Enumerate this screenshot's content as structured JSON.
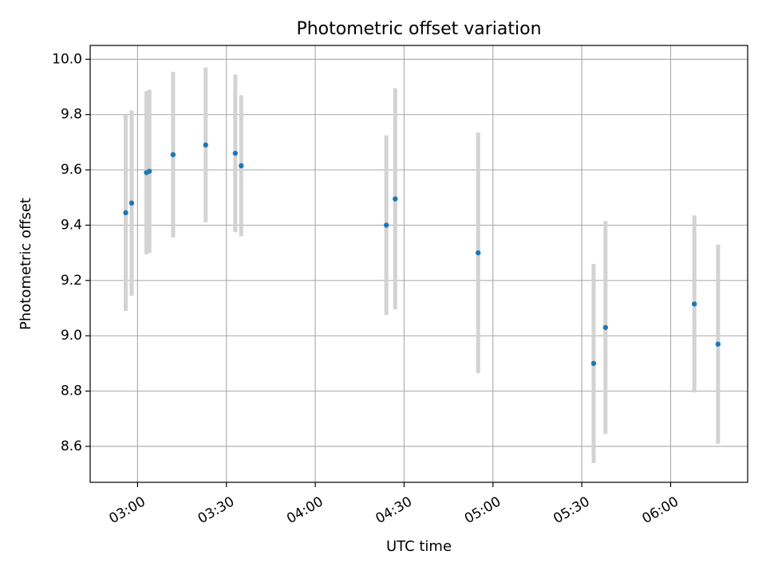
{
  "chart_data": {
    "type": "scatter",
    "title": "Photometric offset variation",
    "xlabel": "UTC time",
    "ylabel": "Photometric offset",
    "xlim": [
      "02:44",
      "06:26"
    ],
    "ylim": [
      8.47,
      10.05
    ],
    "x_ticks": [
      "03:00",
      "03:30",
      "04:00",
      "04:30",
      "05:00",
      "05:30",
      "06:00"
    ],
    "y_ticks": [
      "8.6",
      "8.8",
      "9.0",
      "9.2",
      "9.4",
      "9.6",
      "9.8",
      "10.0"
    ],
    "grid": true,
    "legend": "none",
    "colors": {
      "marker": "#1f77b4",
      "errorbar": "#d3d3d3",
      "grid": "#b0b0b0"
    },
    "points": [
      {
        "x": "02:56",
        "y": 9.445,
        "y_err": 0.355
      },
      {
        "x": "02:58",
        "y": 9.48,
        "y_err": 0.335
      },
      {
        "x": "03:03",
        "y": 9.59,
        "y_err": 0.295
      },
      {
        "x": "03:04",
        "y": 9.595,
        "y_err": 0.295
      },
      {
        "x": "03:12",
        "y": 9.655,
        "y_err": 0.3
      },
      {
        "x": "03:23",
        "y": 9.69,
        "y_err": 0.28
      },
      {
        "x": "03:33",
        "y": 9.66,
        "y_err": 0.285
      },
      {
        "x": "03:35",
        "y": 9.615,
        "y_err": 0.255
      },
      {
        "x": "04:24",
        "y": 9.4,
        "y_err": 0.325
      },
      {
        "x": "04:27",
        "y": 9.495,
        "y_err": 0.4
      },
      {
        "x": "04:55",
        "y": 9.3,
        "y_err": 0.435
      },
      {
        "x": "05:34",
        "y": 8.9,
        "y_err": 0.36
      },
      {
        "x": "05:38",
        "y": 9.03,
        "y_err": 0.385
      },
      {
        "x": "06:08",
        "y": 9.115,
        "y_err": 0.32
      },
      {
        "x": "06:16",
        "y": 8.97,
        "y_err": 0.36
      }
    ]
  }
}
